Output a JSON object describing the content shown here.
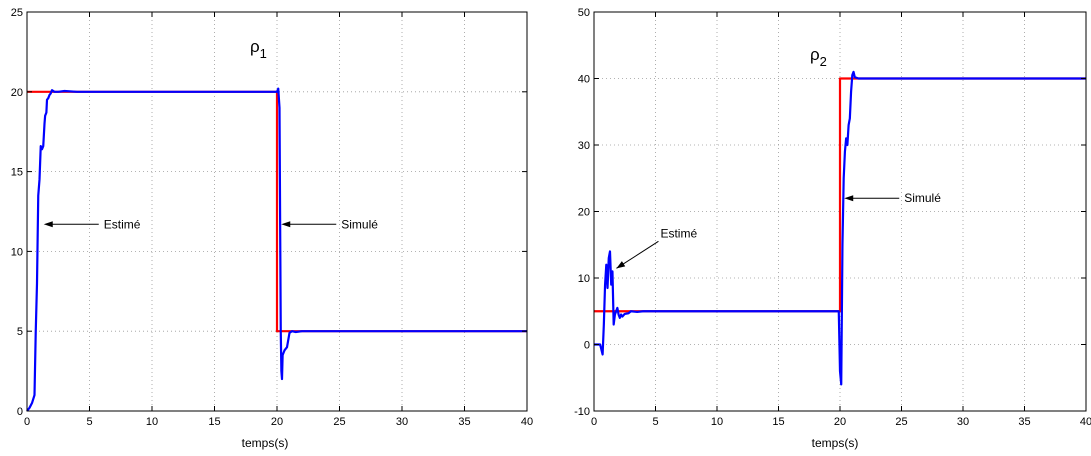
{
  "chart_data": [
    {
      "type": "line",
      "title": "ρ",
      "title_subscript": "1",
      "xlabel": "temps(s)",
      "ylabel": "",
      "xlim": [
        0,
        40
      ],
      "ylim": [
        0,
        25
      ],
      "xticks": [
        0,
        5,
        10,
        15,
        20,
        25,
        30,
        35,
        40
      ],
      "yticks": [
        0,
        5,
        10,
        15,
        20,
        25
      ],
      "grid": true,
      "series": [
        {
          "color": "#ff0000",
          "x": [
            0,
            20,
            20,
            40
          ],
          "y": [
            20,
            20,
            5,
            5
          ]
        },
        {
          "color": "#0000ff",
          "x": [
            0,
            0.2,
            0.4,
            0.6,
            0.7,
            0.8,
            0.9,
            1.0,
            1.1,
            1.2,
            1.3,
            1.4,
            1.45,
            1.55,
            1.6,
            1.7,
            1.8,
            1.9,
            2.0,
            2.2,
            2.5,
            3.0,
            4.0,
            20.0,
            20.1,
            20.2,
            20.3,
            20.35,
            20.4,
            20.45,
            20.5,
            20.6,
            20.8,
            21.0,
            21.2,
            21.5,
            22.0,
            40.0
          ],
          "y": [
            0,
            0.2,
            0.5,
            1.0,
            5.0,
            8.0,
            13.5,
            14.5,
            16.6,
            16.4,
            16.6,
            18.0,
            18.5,
            18.7,
            19.5,
            19.6,
            19.8,
            19.9,
            20.1,
            20.0,
            20.0,
            20.05,
            20.0,
            20.0,
            20.2,
            19.0,
            5.0,
            2.5,
            2.0,
            3.5,
            3.6,
            3.8,
            4.0,
            4.9,
            5.0,
            4.95,
            5.0,
            5.0
          ]
        }
      ],
      "annotations": [
        {
          "text": "Estimé",
          "x": 1.1,
          "y": 11.7
        },
        {
          "text": "Simulé",
          "x": 20.1,
          "y": 11.7
        }
      ]
    },
    {
      "type": "line",
      "title": "ρ",
      "title_subscript": "2",
      "xlabel": "temps(s)",
      "ylabel": "",
      "xlim": [
        0,
        40
      ],
      "ylim": [
        -10,
        50
      ],
      "xticks": [
        0,
        5,
        10,
        15,
        20,
        25,
        30,
        35,
        40
      ],
      "yticks": [
        -10,
        0,
        10,
        20,
        30,
        40,
        50
      ],
      "grid": true,
      "series": [
        {
          "color": "#ff0000",
          "x": [
            0,
            20,
            20,
            40
          ],
          "y": [
            5,
            5,
            40,
            40
          ]
        },
        {
          "color": "#0000ff",
          "x": [
            0,
            0.5,
            0.7,
            0.8,
            0.9,
            1.0,
            1.1,
            1.2,
            1.3,
            1.4,
            1.5,
            1.6,
            1.7,
            1.8,
            1.9,
            2.0,
            2.1,
            2.2,
            2.3,
            2.5,
            2.8,
            3.0,
            3.5,
            4.0,
            5.0,
            19.9,
            20.0,
            20.1,
            20.2,
            20.3,
            20.4,
            20.5,
            20.6,
            20.7,
            20.8,
            20.9,
            21.0,
            21.1,
            21.2,
            21.5,
            22.0,
            40.0
          ],
          "y": [
            0,
            0,
            -1.5,
            3,
            9,
            12,
            8.5,
            13,
            14,
            9,
            11,
            3,
            4.5,
            5,
            5.5,
            4.5,
            4,
            4.5,
            4.2,
            4.6,
            4.7,
            5,
            4.9,
            5,
            5,
            5,
            -4,
            -6,
            15,
            25,
            29,
            31,
            30,
            33,
            34,
            38,
            40.5,
            41,
            40.2,
            40,
            40,
            40
          ]
        }
      ],
      "annotations": [
        {
          "text": "Estimé",
          "x": 1.5,
          "y": 11.0
        },
        {
          "text": "Simulé",
          "x": 20.1,
          "y": 22.0
        }
      ]
    }
  ]
}
